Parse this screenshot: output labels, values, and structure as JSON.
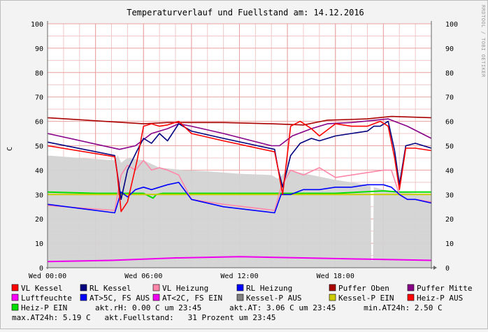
{
  "chart_data": {
    "type": "line",
    "title": "Temperaturverlauf und Fuellstand am: 14.12.2016",
    "ylabel": "C",
    "side_text": "RRDTOOL / TOBI OETIKER",
    "ylim": [
      0,
      100
    ],
    "xlim": [
      0,
      24
    ],
    "y_ticks": [
      "0",
      "10",
      "20",
      "30",
      "40",
      "50",
      "60",
      "70",
      "80",
      "90",
      "100"
    ],
    "x_ticks": [
      {
        "h": 0,
        "label": "Wed 00:00"
      },
      {
        "h": 6,
        "label": "Wed 06:00"
      },
      {
        "h": 12,
        "label": "Wed 12:00"
      },
      {
        "h": 18,
        "label": "Wed 18:00"
      }
    ],
    "grid": true,
    "legend_position": "bottom",
    "colors": {
      "plot_bg": "#ffffff",
      "minor_grid": "#f0c8c8",
      "major_grid": "#e8a0a0",
      "fill": "#d3d3d3",
      "axis": "#666666"
    },
    "series": [
      {
        "name": "VL Kessel",
        "color": "#ff0000",
        "x": [
          0,
          4.2,
          4.35,
          4.6,
          5.0,
          5.6,
          6.0,
          6.5,
          7.0,
          7.5,
          8.2,
          9.0,
          11.0,
          14.2,
          14.4,
          14.7,
          15.2,
          15.8,
          16.5,
          17.0,
          18.0,
          19.0,
          20.0,
          20.4,
          20.8,
          21.3,
          21.7,
          22.0,
          22.4,
          23.0,
          24.0
        ],
        "y": [
          50,
          45.5,
          39,
          23,
          27,
          44,
          58,
          59,
          58,
          58.5,
          60,
          55,
          52,
          47.5,
          41,
          30,
          58,
          60,
          57,
          54,
          59,
          58,
          58,
          59,
          60,
          58,
          45,
          32,
          49,
          49,
          48
        ]
      },
      {
        "name": "RL Kessel",
        "color": "#000080",
        "x": [
          0,
          4.2,
          4.6,
          5.0,
          5.6,
          6.0,
          6.5,
          7.0,
          7.5,
          8.2,
          9.0,
          11.0,
          14.2,
          14.4,
          14.7,
          15.2,
          15.8,
          16.5,
          17.0,
          18.0,
          19.0,
          20.0,
          20.4,
          20.8,
          21.3,
          21.7,
          22.0,
          22.4,
          23.0,
          24.0
        ],
        "y": [
          51.5,
          46,
          28,
          40,
          48,
          53,
          51,
          55,
          52,
          59,
          56,
          53,
          48.5,
          41,
          33,
          46,
          51,
          53,
          52,
          54,
          55,
          56,
          58,
          58,
          60,
          48,
          34,
          50,
          51,
          49
        ]
      },
      {
        "name": "VL Heizung",
        "color": "#ff88aa",
        "x": [
          0,
          4.2,
          4.6,
          5.0,
          5.5,
          6.0,
          6.5,
          7.0,
          7.5,
          8.2,
          9.0,
          11.0,
          14.2,
          14.6,
          15.2,
          16.0,
          17.0,
          18.0,
          19.0,
          20.0,
          21.0,
          21.5,
          22.0,
          22.5,
          23.0,
          24.0
        ],
        "y": [
          25.5,
          23.5,
          38,
          42,
          40,
          44,
          40,
          41,
          40,
          38,
          28,
          26,
          23.5,
          33,
          40,
          38,
          41,
          37,
          38,
          39,
          40,
          40,
          30,
          28,
          28,
          27
        ]
      },
      {
        "name": "RL Heizung",
        "color": "#0000ff",
        "x": [
          0,
          4.2,
          4.6,
          5.0,
          5.5,
          6.0,
          6.5,
          7.0,
          7.5,
          8.2,
          9.0,
          11.0,
          14.2,
          14.6,
          15.2,
          16.0,
          17.0,
          18.0,
          19.0,
          20.0,
          21.0,
          21.5,
          22.0,
          22.5,
          23.0,
          24.0
        ],
        "y": [
          26,
          22.5,
          31,
          29,
          32,
          33,
          32,
          33,
          34,
          35,
          28,
          25,
          22.5,
          30,
          30,
          32,
          32,
          33,
          33,
          34,
          34,
          33,
          30,
          28,
          28,
          26.5
        ]
      },
      {
        "name": "Puffer Oben",
        "color": "#aa0000",
        "x": [
          0,
          6.0,
          7.5,
          11.0,
          14.0,
          16.0,
          17.5,
          20.0,
          21.5,
          24.0
        ],
        "y": [
          61.5,
          59,
          59.5,
          59.5,
          59,
          58.5,
          60.5,
          61,
          62,
          61.5
        ]
      },
      {
        "name": "Puffer Mitte",
        "color": "#880088",
        "x": [
          0,
          4.5,
          5.5,
          6.5,
          7.5,
          8.2,
          9.0,
          11.0,
          14.0,
          14.5,
          15.3,
          16.5,
          17.5,
          19.0,
          20.5,
          21.3,
          22.5,
          24.0
        ],
        "y": [
          55,
          48.5,
          50,
          55,
          57,
          59,
          58,
          55,
          50,
          50,
          54,
          57,
          59,
          59.5,
          60.5,
          61,
          58,
          53
        ]
      },
      {
        "name": "Luftfeuchte",
        "color": "#ff00ff",
        "x": [
          0,
          24
        ],
        "y": [
          0,
          0
        ]
      },
      {
        "name": "AT>5C, FS AUS",
        "color": "#0000ff",
        "x": [
          0,
          24
        ],
        "y": [
          0,
          0
        ]
      },
      {
        "name": "AT<2C, FS EIN",
        "color": "#ee00ee",
        "x": [
          0,
          24
        ],
        "y": [
          0,
          0
        ]
      },
      {
        "name": "Kessel-P AUS",
        "color": "#808080",
        "x": [
          0,
          24
        ],
        "y": [
          0,
          0
        ]
      },
      {
        "name": "Kessel-P EIN",
        "color": "#cccc00",
        "x": [
          0,
          24
        ],
        "y": [
          0,
          0
        ]
      },
      {
        "name": "Heiz-P AUS",
        "color": "#ff0000",
        "x": [
          0,
          24
        ],
        "y": [
          0,
          0
        ]
      },
      {
        "name": "Heiz-P EIN",
        "color": "#00dd00",
        "x": [
          0,
          24
        ],
        "y": [
          0,
          0
        ]
      }
    ],
    "fill_series": {
      "name": "Fuellstand",
      "color": "#d3d3d3",
      "x": [
        0,
        2.0,
        4.2,
        4.4,
        4.6,
        5.0,
        6.0,
        7.0,
        8.5,
        10.0,
        12.0,
        14.0,
        14.4,
        15.0,
        16.5,
        18.0,
        19.5,
        20.2,
        20.25,
        20.35,
        20.4,
        21.0,
        22.0,
        23.0,
        24.0
      ],
      "y": [
        46,
        45,
        44,
        46,
        43,
        45,
        44,
        41,
        40,
        39.5,
        38.5,
        38,
        36.5,
        40,
        38,
        36,
        34.5,
        33.5,
        3,
        3,
        33,
        32,
        31,
        30.5,
        30.5
      ]
    },
    "extra_lines": [
      {
        "color": "#00dd00",
        "x": [
          0,
          3.0,
          6.0,
          6.6,
          6.8,
          7.2,
          9.0,
          12.0,
          15.0,
          18.0,
          21.0,
          22.0,
          24.0
        ],
        "y": [
          31,
          30.5,
          30.5,
          28.5,
          30,
          30.5,
          30.5,
          30.5,
          30.5,
          30.5,
          31.5,
          31,
          31
        ]
      },
      {
        "color": "#cccc00",
        "x": [
          0,
          6.0,
          12.0,
          18.0,
          24.0
        ],
        "y": [
          30,
          30,
          30,
          30,
          30
        ]
      },
      {
        "color": "#ee00ee",
        "x": [
          0,
          4.0,
          8.0,
          12.0,
          16.0,
          20.0,
          24.0
        ],
        "y": [
          2.5,
          3,
          4,
          4.5,
          4,
          3.5,
          3
        ]
      }
    ]
  },
  "footer": {
    "line1": "Heiz-P EIN      akt.rH: 0.00 C um 23:45      akt.AT: 3.06 C um 23:45      min.AT24h: 2.50 C",
    "line2": "max.AT24h: 5.19 C   akt.Fuellstand:   31 Prozent um 23:45"
  }
}
